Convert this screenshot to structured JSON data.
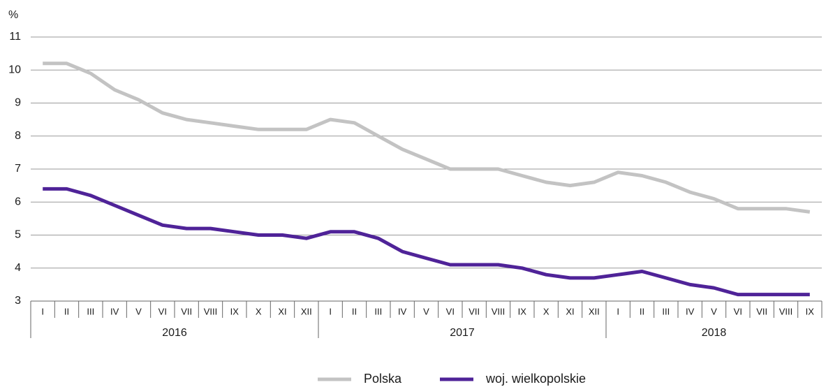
{
  "chart_data": {
    "type": "line",
    "y_label": "%",
    "groups": [
      {
        "name": "2016",
        "categories": [
          "I",
          "II",
          "III",
          "IV",
          "V",
          "VI",
          "VII",
          "VIII",
          "IX",
          "X",
          "XI",
          "XII"
        ]
      },
      {
        "name": "2017",
        "categories": [
          "I",
          "II",
          "III",
          "IV",
          "V",
          "VI",
          "VII",
          "VIII",
          "IX",
          "X",
          "XI",
          "XII"
        ]
      },
      {
        "name": "2018",
        "categories": [
          "I",
          "II",
          "III",
          "IV",
          "V",
          "VI",
          "VII",
          "VIII",
          "IX"
        ]
      }
    ],
    "series": [
      {
        "name": "Polska",
        "color": "#c3c3c3",
        "values": [
          10.2,
          10.2,
          9.9,
          9.4,
          9.1,
          8.7,
          8.5,
          8.4,
          8.3,
          8.2,
          8.2,
          8.2,
          8.5,
          8.4,
          8.0,
          7.6,
          7.3,
          7.0,
          7.0,
          7.0,
          6.8,
          6.6,
          6.5,
          6.6,
          6.9,
          6.8,
          6.6,
          6.3,
          6.1,
          5.8,
          5.8,
          5.8,
          5.7
        ]
      },
      {
        "name": "woj. wielkopolskie",
        "color": "#4f2398",
        "values": [
          6.4,
          6.4,
          6.2,
          5.9,
          5.6,
          5.3,
          5.2,
          5.2,
          5.1,
          5.0,
          5.0,
          4.9,
          5.1,
          5.1,
          4.9,
          4.5,
          4.3,
          4.1,
          4.1,
          4.1,
          4.0,
          3.8,
          3.7,
          3.7,
          3.8,
          3.9,
          3.7,
          3.5,
          3.4,
          3.2,
          3.2,
          3.2,
          3.2
        ]
      }
    ],
    "ylim": [
      3,
      11
    ],
    "yticks": [
      3,
      4,
      5,
      6,
      7,
      8,
      9,
      10,
      11
    ],
    "grid": true,
    "legend": "bottom"
  }
}
